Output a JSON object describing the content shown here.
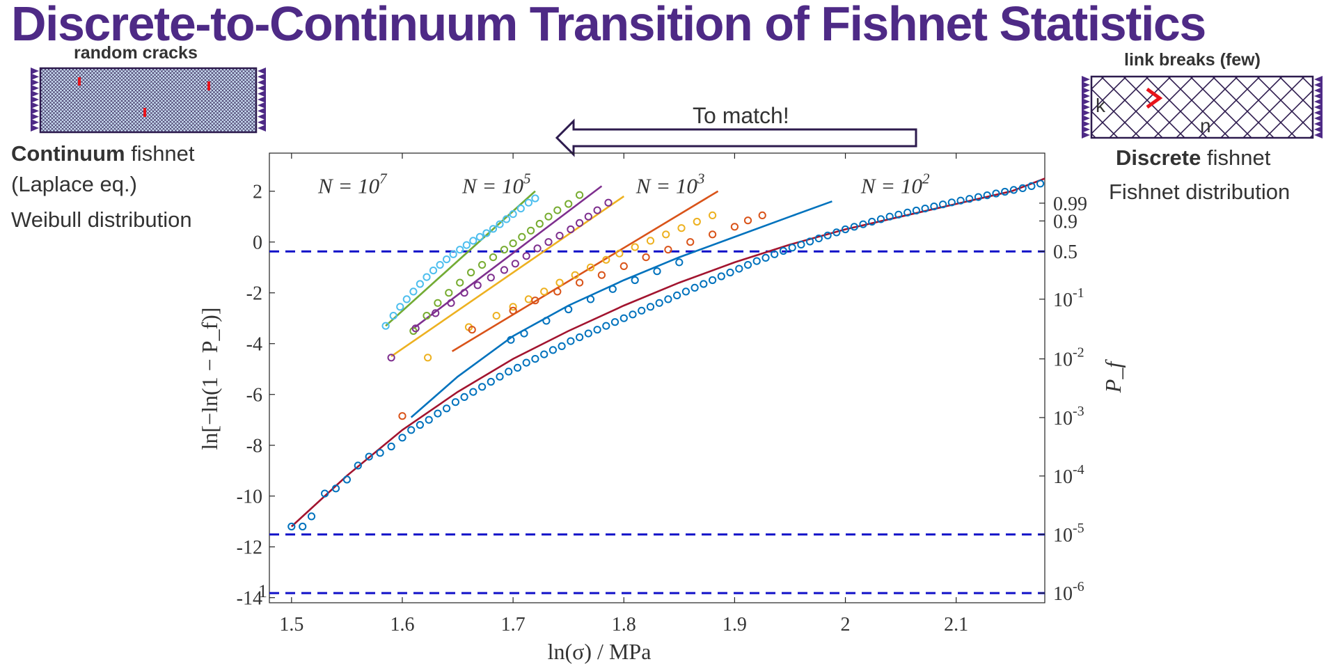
{
  "slide": {
    "title": "Discrete-to-Continuum Transition of Fishnet Statistics",
    "left_panel": {
      "caption": "random cracks",
      "line1_bold": "Continuum",
      "line1_rest": " fishnet",
      "line2": "(Laplace eq.)",
      "line3": "Weibull distribution"
    },
    "right_panel": {
      "caption": "link breaks (few)",
      "label_k": "k",
      "label_n": "n",
      "line1_bold": "Discrete",
      "line1_rest": " fishnet",
      "line2": "Fishnet distribution"
    },
    "arrow_label": "To match!",
    "colors": {
      "title": "#4e2a86",
      "net": "#2d1b4e",
      "crack": "#e8131b",
      "dashed": "#1010c8"
    }
  },
  "chart_data": {
    "type": "scatter",
    "xlabel": "ln(σ) / MPa",
    "ylabel": "ln[−ln(1 − P_f)]",
    "y2label": "P_f",
    "xlim": [
      1.48,
      2.18
    ],
    "ylim": [
      -14.2,
      3.5
    ],
    "x_ticks": [
      {
        "v": 1.5,
        "label": "1.5"
      },
      {
        "v": 1.6,
        "label": "1.6"
      },
      {
        "v": 1.7,
        "label": "1.7"
      },
      {
        "v": 1.8,
        "label": "1.8"
      },
      {
        "v": 1.9,
        "label": "1.9"
      },
      {
        "v": 2.0,
        "label": "2"
      },
      {
        "v": 2.1,
        "label": "2.1"
      }
    ],
    "y_ticks": [
      {
        "v": 2,
        "label": "2"
      },
      {
        "v": 0,
        "label": "0"
      },
      {
        "v": -2,
        "label": "-2"
      },
      {
        "v": -4,
        "label": "-4"
      },
      {
        "v": -6,
        "label": "-6"
      },
      {
        "v": -8,
        "label": "-8"
      },
      {
        "v": -10,
        "label": "-10"
      },
      {
        "v": -12,
        "label": "-12"
      },
      {
        "v": -14,
        "label": "-14"
      }
    ],
    "y2_ticks": [
      {
        "v": 1.53,
        "base": "0.99",
        "exp": ""
      },
      {
        "v": 0.83,
        "base": "0.9",
        "exp": ""
      },
      {
        "v": -0.37,
        "base": "0.5",
        "exp": ""
      },
      {
        "v": -2.25,
        "base": "10",
        "exp": "-1"
      },
      {
        "v": -4.6,
        "base": "10",
        "exp": "-2"
      },
      {
        "v": -6.91,
        "base": "10",
        "exp": "-3"
      },
      {
        "v": -9.21,
        "base": "10",
        "exp": "-4"
      },
      {
        "v": -11.51,
        "base": "10",
        "exp": "-5"
      },
      {
        "v": -13.82,
        "base": "10",
        "exp": "-6"
      }
    ],
    "hlines": [
      -0.37,
      -11.51,
      -13.82
    ],
    "annotations": [
      {
        "text": "N = 10",
        "exp": "7",
        "x": 1.555,
        "y": 2.25
      },
      {
        "text": "N = 10",
        "exp": "5",
        "x": 1.685,
        "y": 2.25
      },
      {
        "text": "N = 10",
        "exp": "3",
        "x": 1.842,
        "y": 2.25
      },
      {
        "text": "N = 10",
        "exp": "2",
        "x": 2.045,
        "y": 2.25
      }
    ],
    "marker_one": "1",
    "series": [
      {
        "color": "#4dbeee",
        "fit": [
          [
            1.585,
            -3.3
          ],
          [
            1.72,
            2.0
          ]
        ],
        "points": [
          [
            1.585,
            -3.3
          ],
          [
            1.592,
            -2.9
          ],
          [
            1.598,
            -2.55
          ],
          [
            1.604,
            -2.25
          ],
          [
            1.61,
            -1.95
          ],
          [
            1.616,
            -1.65
          ],
          [
            1.622,
            -1.38
          ],
          [
            1.628,
            -1.12
          ],
          [
            1.634,
            -0.9
          ],
          [
            1.64,
            -0.68
          ],
          [
            1.646,
            -0.48
          ],
          [
            1.652,
            -0.3
          ],
          [
            1.658,
            -0.12
          ],
          [
            1.664,
            0.05
          ],
          [
            1.67,
            0.2
          ],
          [
            1.676,
            0.35
          ],
          [
            1.682,
            0.52
          ],
          [
            1.688,
            0.7
          ],
          [
            1.694,
            0.9
          ],
          [
            1.7,
            1.1
          ],
          [
            1.707,
            1.32
          ],
          [
            1.714,
            1.55
          ],
          [
            1.72,
            1.72
          ]
        ]
      },
      {
        "color": "#77ac30",
        "fit": [
          [
            1.585,
            -3.3
          ],
          [
            1.72,
            2.0
          ]
        ],
        "points": [
          [
            1.61,
            -3.5
          ],
          [
            1.622,
            -2.9
          ],
          [
            1.632,
            -2.4
          ],
          [
            1.642,
            -2.0
          ],
          [
            1.652,
            -1.6
          ],
          [
            1.662,
            -1.2
          ],
          [
            1.672,
            -0.9
          ],
          [
            1.682,
            -0.6
          ],
          [
            1.692,
            -0.3
          ],
          [
            1.7,
            -0.05
          ],
          [
            1.708,
            0.2
          ],
          [
            1.716,
            0.45
          ],
          [
            1.724,
            0.72
          ],
          [
            1.732,
            1.0
          ],
          [
            1.74,
            1.25
          ],
          [
            1.75,
            1.5
          ],
          [
            1.76,
            1.85
          ]
        ]
      },
      {
        "color": "#7e2f8e",
        "fit": [
          [
            1.61,
            -3.4
          ],
          [
            1.78,
            2.2
          ]
        ],
        "points": [
          [
            1.59,
            -4.55
          ],
          [
            1.612,
            -3.4
          ],
          [
            1.63,
            -2.8
          ],
          [
            1.644,
            -2.4
          ],
          [
            1.656,
            -2.0
          ],
          [
            1.668,
            -1.7
          ],
          [
            1.68,
            -1.4
          ],
          [
            1.692,
            -1.1
          ],
          [
            1.702,
            -0.85
          ],
          [
            1.712,
            -0.55
          ],
          [
            1.722,
            -0.25
          ],
          [
            1.732,
            0.0
          ],
          [
            1.742,
            0.25
          ],
          [
            1.752,
            0.5
          ],
          [
            1.76,
            0.75
          ],
          [
            1.768,
            1.0
          ],
          [
            1.776,
            1.25
          ],
          [
            1.786,
            1.55
          ]
        ]
      },
      {
        "color": "#edb120",
        "fit": [
          [
            1.59,
            -4.5
          ],
          [
            1.8,
            1.8
          ]
        ],
        "points": [
          [
            1.623,
            -4.55
          ],
          [
            1.66,
            -3.35
          ],
          [
            1.685,
            -2.9
          ],
          [
            1.7,
            -2.55
          ],
          [
            1.714,
            -2.25
          ],
          [
            1.728,
            -1.95
          ],
          [
            1.742,
            -1.6
          ],
          [
            1.756,
            -1.3
          ],
          [
            1.77,
            -1.0
          ],
          [
            1.784,
            -0.7
          ],
          [
            1.796,
            -0.45
          ],
          [
            1.81,
            -0.2
          ],
          [
            1.824,
            0.05
          ],
          [
            1.838,
            0.3
          ],
          [
            1.852,
            0.55
          ],
          [
            1.866,
            0.8
          ],
          [
            1.88,
            1.05
          ]
        ]
      },
      {
        "color": "#d95319",
        "fit": [
          [
            1.645,
            -4.3
          ],
          [
            1.885,
            2.0
          ]
        ],
        "points": [
          [
            1.6,
            -6.85
          ],
          [
            1.663,
            -3.45
          ],
          [
            1.7,
            -2.7
          ],
          [
            1.72,
            -2.3
          ],
          [
            1.74,
            -1.95
          ],
          [
            1.76,
            -1.6
          ],
          [
            1.78,
            -1.3
          ],
          [
            1.8,
            -0.95
          ],
          [
            1.82,
            -0.6
          ],
          [
            1.84,
            -0.3
          ],
          [
            1.86,
            0.0
          ],
          [
            1.88,
            0.3
          ],
          [
            1.9,
            0.6
          ],
          [
            1.912,
            0.85
          ],
          [
            1.925,
            1.05
          ]
        ]
      },
      {
        "color": "#0072bd",
        "fit": [
          [
            1.608,
            -6.9
          ],
          [
            1.65,
            -5.3
          ],
          [
            1.7,
            -3.7
          ],
          [
            1.75,
            -2.5
          ],
          [
            1.8,
            -1.5
          ],
          [
            1.85,
            -0.6
          ],
          [
            1.9,
            0.2
          ],
          [
            1.95,
            1.0
          ],
          [
            1.988,
            1.6
          ]
        ],
        "points": [
          [
            1.698,
            -3.85
          ],
          [
            1.71,
            -3.6
          ],
          [
            1.73,
            -3.1
          ],
          [
            1.75,
            -2.65
          ],
          [
            1.77,
            -2.25
          ],
          [
            1.79,
            -1.85
          ],
          [
            1.81,
            -1.5
          ],
          [
            1.83,
            -1.15
          ],
          [
            1.85,
            -0.8
          ]
        ]
      },
      {
        "color": "#a2142f",
        "fit": [
          [
            1.5,
            -11.2
          ],
          [
            1.55,
            -9.2
          ],
          [
            1.6,
            -7.4
          ],
          [
            1.65,
            -5.9
          ],
          [
            1.7,
            -4.6
          ],
          [
            1.75,
            -3.5
          ],
          [
            1.8,
            -2.5
          ],
          [
            1.85,
            -1.6
          ],
          [
            1.9,
            -0.8
          ],
          [
            1.95,
            -0.1
          ],
          [
            2.0,
            0.5
          ],
          [
            2.05,
            1.0
          ],
          [
            2.1,
            1.5
          ],
          [
            2.15,
            2.0
          ],
          [
            2.18,
            2.5
          ]
        ],
        "points": []
      },
      {
        "color": "#0072bd",
        "fit": [],
        "points": [
          [
            1.5,
            -11.2
          ],
          [
            1.51,
            -11.2
          ],
          [
            1.518,
            -10.8
          ],
          [
            1.53,
            -9.9
          ],
          [
            1.54,
            -9.7
          ],
          [
            1.55,
            -9.35
          ],
          [
            1.56,
            -8.8
          ],
          [
            1.57,
            -8.45
          ],
          [
            1.58,
            -8.3
          ],
          [
            1.59,
            -8.05
          ],
          [
            1.6,
            -7.7
          ],
          [
            1.608,
            -7.4
          ],
          [
            1.616,
            -7.2
          ],
          [
            1.624,
            -7.0
          ],
          [
            1.632,
            -6.75
          ],
          [
            1.64,
            -6.55
          ],
          [
            1.648,
            -6.3
          ],
          [
            1.656,
            -6.1
          ],
          [
            1.664,
            -5.9
          ],
          [
            1.672,
            -5.7
          ],
          [
            1.68,
            -5.5
          ],
          [
            1.688,
            -5.3
          ],
          [
            1.696,
            -5.1
          ],
          [
            1.704,
            -4.95
          ],
          [
            1.712,
            -4.75
          ],
          [
            1.72,
            -4.6
          ],
          [
            1.728,
            -4.42
          ],
          [
            1.736,
            -4.25
          ],
          [
            1.744,
            -4.1
          ],
          [
            1.752,
            -3.9
          ],
          [
            1.76,
            -3.75
          ],
          [
            1.768,
            -3.6
          ],
          [
            1.776,
            -3.45
          ],
          [
            1.784,
            -3.3
          ],
          [
            1.792,
            -3.15
          ],
          [
            1.8,
            -3.0
          ],
          [
            1.808,
            -2.85
          ],
          [
            1.816,
            -2.7
          ],
          [
            1.824,
            -2.55
          ],
          [
            1.832,
            -2.4
          ],
          [
            1.84,
            -2.25
          ],
          [
            1.848,
            -2.1
          ],
          [
            1.856,
            -1.95
          ],
          [
            1.864,
            -1.8
          ],
          [
            1.872,
            -1.65
          ],
          [
            1.88,
            -1.5
          ],
          [
            1.888,
            -1.35
          ],
          [
            1.896,
            -1.2
          ],
          [
            1.904,
            -1.05
          ],
          [
            1.912,
            -0.9
          ],
          [
            1.92,
            -0.75
          ],
          [
            1.928,
            -0.62
          ],
          [
            1.936,
            -0.48
          ],
          [
            1.944,
            -0.35
          ],
          [
            1.952,
            -0.22
          ],
          [
            1.96,
            -0.1
          ],
          [
            1.968,
            0.02
          ],
          [
            1.976,
            0.14
          ],
          [
            1.984,
            0.26
          ],
          [
            1.992,
            0.38
          ],
          [
            2.0,
            0.5
          ],
          [
            2.008,
            0.6
          ],
          [
            2.016,
            0.7
          ],
          [
            2.024,
            0.8
          ],
          [
            2.032,
            0.9
          ],
          [
            2.04,
            1.0
          ],
          [
            2.048,
            1.08
          ],
          [
            2.056,
            1.16
          ],
          [
            2.064,
            1.24
          ],
          [
            2.072,
            1.32
          ],
          [
            2.08,
            1.4
          ],
          [
            2.088,
            1.48
          ],
          [
            2.096,
            1.56
          ],
          [
            2.104,
            1.63
          ],
          [
            2.112,
            1.7
          ],
          [
            2.12,
            1.77
          ],
          [
            2.128,
            1.84
          ],
          [
            2.136,
            1.91
          ],
          [
            2.144,
            1.98
          ],
          [
            2.152,
            2.05
          ],
          [
            2.16,
            2.12
          ],
          [
            2.168,
            2.2
          ],
          [
            2.176,
            2.3
          ]
        ]
      }
    ]
  }
}
